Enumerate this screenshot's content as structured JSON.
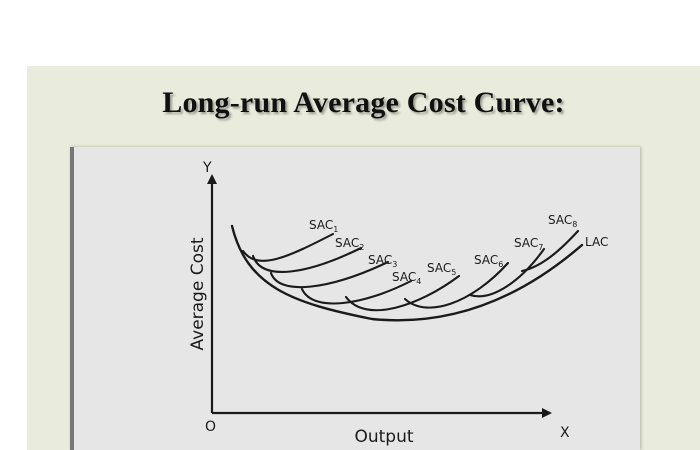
{
  "slide": {
    "title": "Long-run Average Cost Curve:"
  },
  "chart_data": {
    "type": "line",
    "title": "Long-run Average Cost Curve:",
    "xlabel": "Output",
    "ylabel": "Average Cost",
    "axis_labels": {
      "x_end": "X",
      "y_end": "Y",
      "origin": "O"
    },
    "grid": false,
    "legend": "none",
    "series": [
      {
        "name": "LAC",
        "label": "LAC"
      },
      {
        "name": "SAC1",
        "label": "SAC",
        "sub": "1"
      },
      {
        "name": "SAC2",
        "label": "SAC",
        "sub": "2"
      },
      {
        "name": "SAC3",
        "label": "SAC",
        "sub": "3"
      },
      {
        "name": "SAC4",
        "label": "SAC",
        "sub": "4"
      },
      {
        "name": "SAC5",
        "label": "SAC",
        "sub": "5"
      },
      {
        "name": "SAC6",
        "label": "SAC",
        "sub": "6"
      },
      {
        "name": "SAC7",
        "label": "SAC",
        "sub": "7"
      },
      {
        "name": "SAC8",
        "label": "SAC",
        "sub": "8"
      }
    ]
  }
}
